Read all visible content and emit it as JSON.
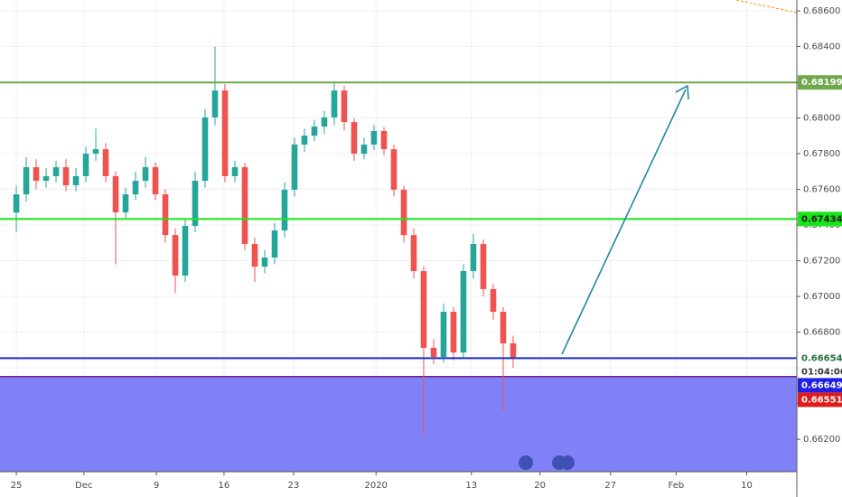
{
  "chart_data": {
    "type": "candlestick",
    "x": [
      0,
      1,
      2,
      3,
      4,
      5,
      6,
      7,
      8,
      9,
      10,
      11,
      12,
      13,
      14,
      15,
      16,
      17,
      18,
      19,
      20,
      21,
      22,
      23,
      24,
      25,
      26,
      27,
      28,
      29,
      30,
      31,
      32,
      33,
      34,
      35,
      36,
      37,
      38,
      39,
      40,
      41,
      42,
      43,
      44,
      45,
      46,
      47,
      48,
      49,
      50
    ],
    "open": [
      0.6747,
      0.67572,
      0.67724,
      0.67648,
      0.67674,
      0.67724,
      0.67623,
      0.67674,
      0.678,
      0.67825,
      0.67674,
      0.67471,
      0.67572,
      0.67648,
      0.67724,
      0.67572,
      0.67344,
      0.67117,
      0.67395,
      0.67648,
      0.68003,
      0.68154,
      0.67674,
      0.67724,
      0.67294,
      0.67167,
      0.67218,
      0.6737,
      0.67598,
      0.67851,
      0.67901,
      0.67952,
      0.68003,
      0.68154,
      0.67977,
      0.678,
      0.67851,
      0.67927,
      0.67825,
      0.67598,
      0.67344,
      0.67142,
      0.66712,
      0.66661,
      0.66914,
      0.66686,
      0.67142,
      0.67294,
      0.67041,
      0.66914,
      0.66737
    ],
    "high": [
      0.6762,
      0.6778,
      0.6777,
      0.6772,
      0.6776,
      0.6777,
      0.6772,
      0.6784,
      0.6794,
      0.6786,
      0.677,
      0.6761,
      0.677,
      0.6778,
      0.6775,
      0.676,
      0.6738,
      0.6743,
      0.677,
      0.6805,
      0.684,
      0.6819,
      0.6776,
      0.6775,
      0.6733,
      0.6726,
      0.6741,
      0.6764,
      0.6789,
      0.6794,
      0.6799,
      0.6804,
      0.682,
      0.6818,
      0.68,
      0.6789,
      0.6796,
      0.6795,
      0.6785,
      0.6762,
      0.6738,
      0.6717,
      0.6676,
      0.6696,
      0.6694,
      0.6718,
      0.6735,
      0.6732,
      0.6707,
      0.6694,
      0.6678
    ],
    "low": [
      0.6736,
      0.6753,
      0.676,
      0.6761,
      0.6764,
      0.6759,
      0.6759,
      0.6764,
      0.6776,
      0.6764,
      0.6718,
      0.6744,
      0.6754,
      0.6761,
      0.6754,
      0.673,
      0.6702,
      0.6708,
      0.6736,
      0.6761,
      0.6796,
      0.6764,
      0.6764,
      0.6726,
      0.6708,
      0.6713,
      0.6718,
      0.6733,
      0.6756,
      0.6781,
      0.6787,
      0.6791,
      0.6796,
      0.6793,
      0.6776,
      0.6777,
      0.6782,
      0.6779,
      0.6756,
      0.673,
      0.671,
      0.6623,
      0.6662,
      0.6663,
      0.6664,
      0.6665,
      0.671,
      0.67,
      0.6687,
      0.66357,
      0.666
    ],
    "close": [
      0.67572,
      0.67724,
      0.67648,
      0.67674,
      0.67724,
      0.67623,
      0.67674,
      0.678,
      0.67825,
      0.67674,
      0.67471,
      0.67572,
      0.67648,
      0.67724,
      0.67572,
      0.67344,
      0.67117,
      0.67395,
      0.67648,
      0.68003,
      0.68154,
      0.67674,
      0.67724,
      0.67294,
      0.67167,
      0.67218,
      0.6737,
      0.67598,
      0.67851,
      0.67901,
      0.67952,
      0.68003,
      0.68154,
      0.67977,
      0.678,
      0.67851,
      0.67927,
      0.67825,
      0.67598,
      0.67344,
      0.67142,
      0.66712,
      0.66661,
      0.66914,
      0.66686,
      0.67142,
      0.67294,
      0.67041,
      0.66914,
      0.66737,
      0.66654
    ],
    "up_color": "#26a69a",
    "down_color": "#ef5350",
    "xlim": [
      -1.64,
      78.55
    ],
    "xticks": [
      {
        "value": 0,
        "label": "25"
      },
      {
        "value": 6.8,
        "label": "Dec"
      },
      {
        "value": 14.1,
        "label": "9"
      },
      {
        "value": 20.9,
        "label": "16"
      },
      {
        "value": 27.9,
        "label": "23"
      },
      {
        "value": 36.2,
        "label": "2020"
      },
      {
        "value": 45.8,
        "label": "13"
      },
      {
        "value": 52.7,
        "label": "20"
      },
      {
        "value": 59.8,
        "label": "27"
      },
      {
        "value": 66.4,
        "label": "Feb"
      },
      {
        "value": 73.5,
        "label": "10"
      }
    ],
    "ylim": [
      0.66018,
      0.68661
    ],
    "yticks": [
      {
        "value": 0.662,
        "label": "0.66200"
      },
      {
        "value": 0.664,
        "label": "0.66400"
      },
      {
        "value": 0.666,
        "label": "0.66600"
      },
      {
        "value": 0.668,
        "label": "0.66800"
      },
      {
        "value": 0.67,
        "label": "0.67000"
      },
      {
        "value": 0.672,
        "label": "0.67200"
      },
      {
        "value": 0.674,
        "label": "0.67400"
      },
      {
        "value": 0.676,
        "label": "0.67600"
      },
      {
        "value": 0.678,
        "label": "0.67800"
      },
      {
        "value": 0.68,
        "label": "0.68000"
      },
      {
        "value": 0.682,
        "label": "0.68200"
      },
      {
        "value": 0.684,
        "label": "0.68400"
      },
      {
        "value": 0.686,
        "label": "0.68600"
      }
    ],
    "grid": true,
    "levels": [
      {
        "value": 0.68199,
        "color": "#6fa84a",
        "tag": "#6fa84a",
        "tag_text": "#ffffff"
      },
      {
        "value": 0.67434,
        "color": "#19e619",
        "tag": "#19e619",
        "tag_text": "#1a1a1a"
      },
      {
        "value": 0.66654,
        "color": "#1b2fc9",
        "tag": "#ffffff",
        "tag_text": "#1f6f3f"
      }
    ],
    "countdown": "01:04:06",
    "bid": {
      "value": 0.66649,
      "color": "#1f1fe6"
    },
    "ask": {
      "value": 0.66551,
      "color": "#e01b1b",
      "zone_color": "#8181f7",
      "line_color": "#6a1b9a"
    }
  }
}
